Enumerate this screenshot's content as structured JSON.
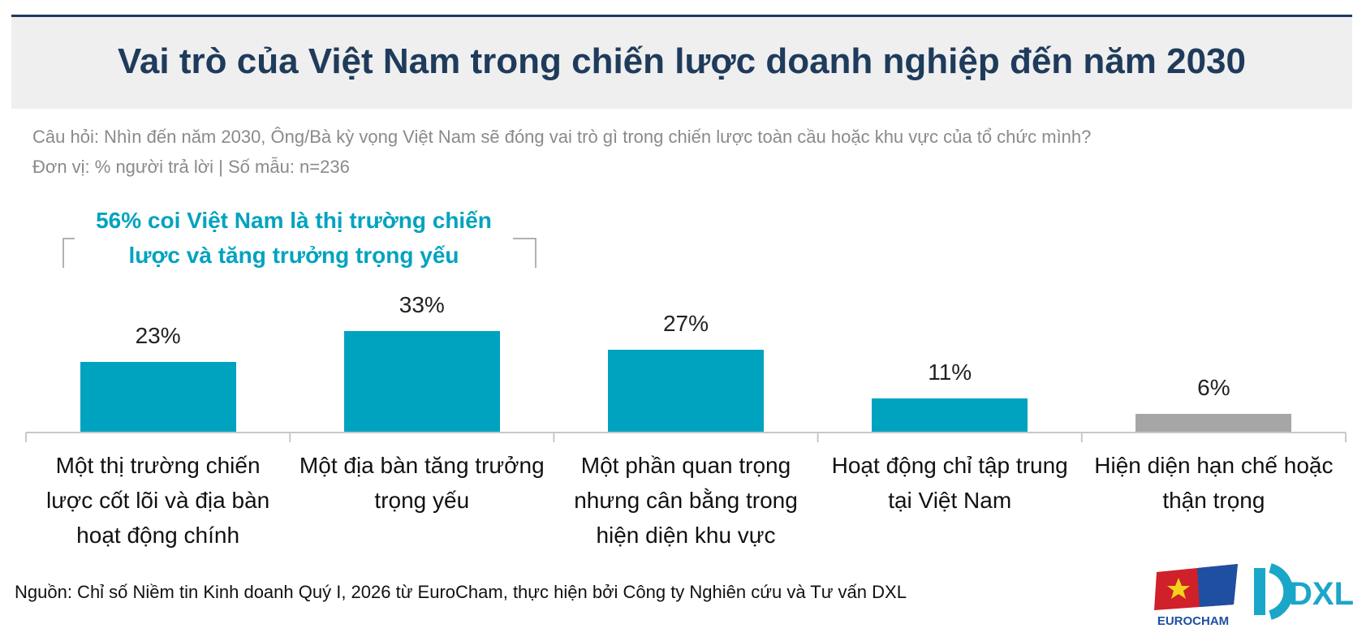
{
  "chart_data": {
    "type": "bar",
    "title": "Vai trò của Việt Nam trong chiến lược doanh nghiệp đến năm 2030",
    "subtitle": [
      "Câu hỏi: Nhìn đến năm 2030, Ông/Bà kỳ vọng Việt Nam sẽ đóng vai trò gì trong chiến lược toàn cầu hoặc khu vực của tổ chức mình?",
      "Đơn vị: % người trả lời | Số mẫu: n=236"
    ],
    "annotation": "56% coi Việt Nam là thị trường chiến lược và tăng trưởng trọng yếu",
    "categories": [
      "Một thị trường chiến lược cốt lõi và địa bàn hoạt động chính",
      "Một địa bàn tăng trưởng trọng yếu",
      "Một phần quan trọng nhưng cân bằng trong hiện diện khu vực",
      "Hoạt động chỉ tập trung tại Việt Nam",
      "Hiện diện hạn chế hoặc thận trọng"
    ],
    "values": [
      23,
      33,
      27,
      11,
      6
    ],
    "value_labels": [
      "23%",
      "33%",
      "27%",
      "11%",
      "6%"
    ],
    "colors": [
      "#00a3bf",
      "#00a3bf",
      "#00a3bf",
      "#00a3bf",
      "#a6a6a6"
    ],
    "source": "Nguồn: Chỉ số Niềm tin Kinh doanh Quý I, 2026 từ EuroCham, thực hiện bởi Công ty Nghiên cứu và Tư vấn DXL",
    "logos": [
      "EUROCHAM",
      "DXL"
    ]
  }
}
